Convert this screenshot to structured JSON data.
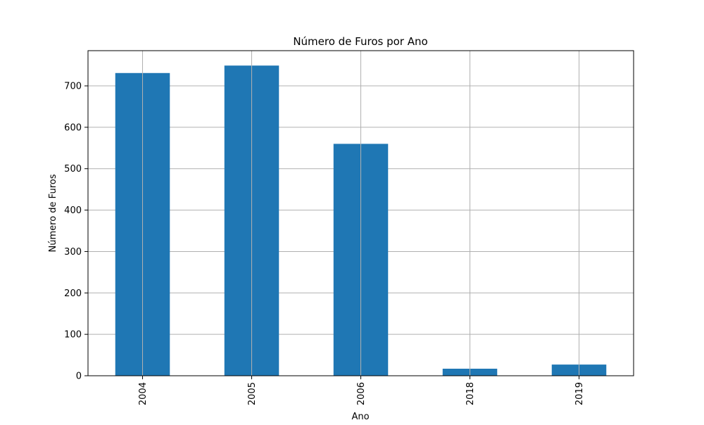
{
  "chart_data": {
    "type": "bar",
    "title": "Número de Furos por Ano",
    "xlabel": "Ano",
    "ylabel": "Número de Furos",
    "categories": [
      "2004",
      "2005",
      "2006",
      "2018",
      "2019"
    ],
    "values": [
      731,
      749,
      560,
      17,
      27
    ],
    "ylim": [
      0,
      785
    ],
    "yticks": [
      0,
      100,
      200,
      300,
      400,
      500,
      600,
      700
    ],
    "grid": true,
    "legend": "none",
    "bar_color": "#1f77b4",
    "grid_color": "#b0b0b0"
  }
}
